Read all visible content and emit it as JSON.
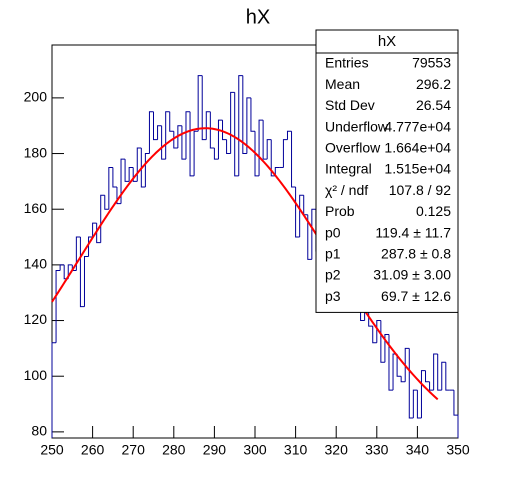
{
  "chart_data": {
    "type": "histogram",
    "title": "hX",
    "bins": [
      250,
      251,
      252,
      253,
      254,
      255,
      256,
      257,
      258,
      259,
      260,
      261,
      262,
      263,
      264,
      265,
      266,
      267,
      268,
      269,
      270,
      271,
      272,
      273,
      274,
      275,
      276,
      277,
      278,
      279,
      280,
      281,
      282,
      283,
      284,
      285,
      286,
      287,
      288,
      289,
      290,
      291,
      292,
      293,
      294,
      295,
      296,
      297,
      298,
      299,
      300,
      301,
      302,
      303,
      304,
      305,
      306,
      307,
      308,
      309,
      310,
      311,
      312,
      313,
      314,
      315,
      316,
      317,
      318,
      319,
      320,
      321,
      322,
      323,
      324,
      325,
      326,
      327,
      328,
      329,
      330,
      331,
      332,
      333,
      334,
      335,
      336,
      337,
      338,
      339,
      340,
      341,
      342,
      343,
      344,
      345,
      346,
      347,
      348,
      349,
      350
    ],
    "values": [
      112,
      138,
      140,
      135,
      140,
      138,
      150,
      125,
      143,
      150,
      155,
      148,
      165,
      160,
      175,
      168,
      162,
      178,
      170,
      175,
      170,
      182,
      168,
      180,
      195,
      185,
      190,
      178,
      195,
      188,
      182,
      190,
      178,
      195,
      172,
      188,
      208,
      185,
      195,
      182,
      178,
      192,
      185,
      180,
      202,
      172,
      208,
      180,
      200,
      188,
      172,
      192,
      178,
      185,
      172,
      175,
      175,
      185,
      188,
      168,
      150,
      165,
      158,
      142,
      160,
      145,
      160,
      150,
      155,
      148,
      145,
      150,
      135,
      140,
      125,
      130,
      120,
      128,
      118,
      112,
      120,
      105,
      115,
      95,
      108,
      100,
      98,
      110,
      85,
      95,
      85,
      102,
      98,
      95,
      108,
      95,
      105,
      95,
      95,
      86
    ],
    "color": "#000099",
    "fit": {
      "color": "#ff0000",
      "range": [
        250,
        345
      ],
      "p0": 119.4,
      "p1": 287.8,
      "p2": 31.09,
      "p3": 69.7
    },
    "xlim": [
      250,
      350
    ],
    "xticks": [
      250,
      260,
      270,
      280,
      290,
      300,
      310,
      320,
      330,
      340,
      350
    ],
    "ylim": [
      77.8,
      219
    ],
    "yticks": [
      80,
      100,
      120,
      140,
      160,
      180,
      200
    ],
    "stats": {
      "title": "hX",
      "rows": [
        {
          "name": "Entries",
          "value": "79553"
        },
        {
          "name": "Mean",
          "value": "296.2"
        },
        {
          "name": "Std Dev",
          "value": "26.54"
        },
        {
          "name": "Underflow",
          "value": "4.777e+04"
        },
        {
          "name": "Overflow",
          "value": "1.664e+04"
        },
        {
          "name": "Integral",
          "value": "1.515e+04"
        },
        {
          "name": "χ² / ndf",
          "value": "107.8 / 92"
        },
        {
          "name": "Prob",
          "value": "0.125"
        },
        {
          "name": "p0",
          "value": "119.4 ± 11.7"
        },
        {
          "name": "p1",
          "value": "287.8 ± 0.8"
        },
        {
          "name": "p2",
          "value": "31.09 ± 3.00"
        },
        {
          "name": "p3",
          "value": "69.7 ± 12.6"
        }
      ]
    }
  }
}
